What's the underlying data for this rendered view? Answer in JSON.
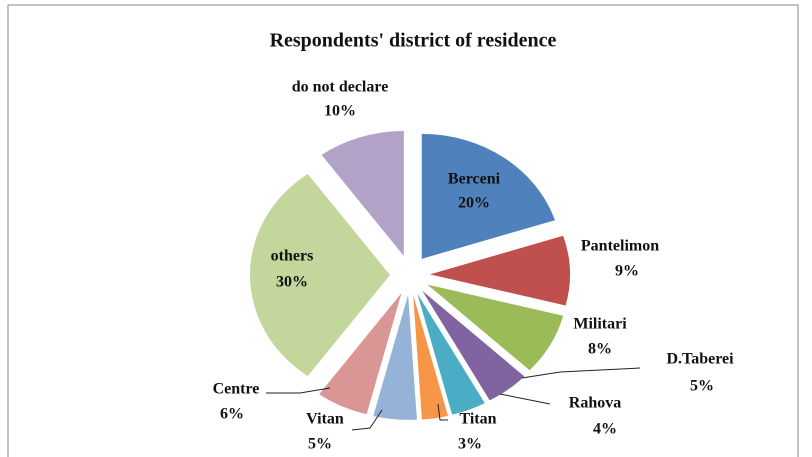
{
  "chart_data": {
    "type": "pie",
    "title": "Respondents' district of residence",
    "categories": [
      "Berceni",
      "Pantelimon",
      "Militari",
      "D.Taberei",
      "Rahova",
      "Titan",
      "Vitan",
      "Centre",
      "others",
      "do not declare"
    ],
    "values": [
      20,
      9,
      8,
      5,
      4,
      3,
      5,
      6,
      30,
      10
    ],
    "value_labels": [
      "20%",
      "9%",
      "8%",
      "5%",
      "4%",
      "3%",
      "5%",
      "6%",
      "30%",
      "10%"
    ],
    "colors": [
      "#4f81bd",
      "#c0504d",
      "#9bbb59",
      "#8064a2",
      "#4bacc6",
      "#f79646",
      "#95b3d7",
      "#d99694",
      "#c3d69b",
      "#b3a2c7"
    ]
  }
}
